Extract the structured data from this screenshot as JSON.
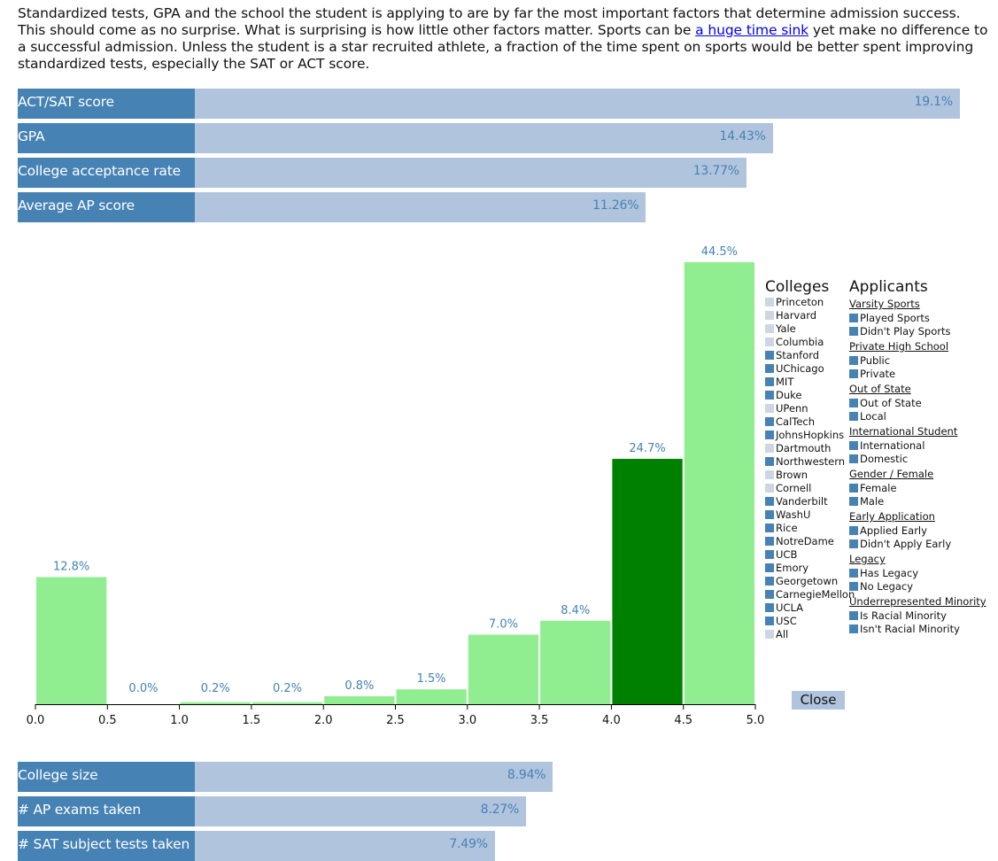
{
  "intro": {
    "text_before": "Standardized tests, GPA and the school the student is applying to are by far the most important factors that determine admission success. This should come as no surprise. What is surprising is how little other factors matter. Sports can be ",
    "link_text": "a huge time sink",
    "text_after": " yet make no difference to a successful admission. Unless the student is a star recruited athlete, a fraction of the time spent on sports would be better spent improving standardized tests, especially the SAT or ACT score."
  },
  "factors_top": [
    {
      "label": "ACT/SAT score",
      "value": "19.1%",
      "pct": 19.1
    },
    {
      "label": "GPA",
      "value": "14.43%",
      "pct": 14.43
    },
    {
      "label": "College acceptance rate",
      "value": "13.77%",
      "pct": 13.77
    },
    {
      "label": "Average AP score",
      "value": "11.26%",
      "pct": 11.26
    }
  ],
  "factors_bottom": [
    {
      "label": "College size",
      "value": "8.94%",
      "pct": 8.94
    },
    {
      "label": "# AP exams taken",
      "value": "8.27%",
      "pct": 8.27
    },
    {
      "label": "# SAT subject tests taken",
      "value": "7.49%",
      "pct": 7.49
    }
  ],
  "chart_data": {
    "type": "bar",
    "title": "",
    "xlabel": "",
    "ylabel": "",
    "bins": [
      "0.0-0.5",
      "0.5-1.0",
      "1.0-1.5",
      "1.5-2.0",
      "2.0-2.5",
      "2.5-3.0",
      "3.0-3.5",
      "3.5-4.0",
      "4.0-4.5",
      "4.5-5.0"
    ],
    "values": [
      12.8,
      0.0,
      0.2,
      0.2,
      0.8,
      1.5,
      7.0,
      8.4,
      24.7,
      44.5
    ],
    "labels": [
      "12.8%",
      "0.0%",
      "0.2%",
      "0.2%",
      "0.8%",
      "1.5%",
      "7.0%",
      "8.4%",
      "24.7%",
      "44.5%"
    ],
    "highlight_index": 8,
    "ticks": [
      "0.0",
      "0.5",
      "1.0",
      "1.5",
      "2.0",
      "2.5",
      "3.0",
      "3.5",
      "4.0",
      "4.5",
      "5.0"
    ],
    "xlim": [
      0,
      5
    ],
    "ylim": [
      0,
      44.5
    ],
    "colors": {
      "bar": "#90ee90",
      "highlight": "#008000",
      "label": "#4682b4"
    }
  },
  "legend": {
    "colleges_title": "Colleges",
    "colleges": [
      {
        "name": "Princeton",
        "active": false
      },
      {
        "name": "Harvard",
        "active": false
      },
      {
        "name": "Yale",
        "active": false
      },
      {
        "name": "Columbia",
        "active": false
      },
      {
        "name": "Stanford",
        "active": true
      },
      {
        "name": "UChicago",
        "active": true
      },
      {
        "name": "MIT",
        "active": true
      },
      {
        "name": "Duke",
        "active": true
      },
      {
        "name": "UPenn",
        "active": false
      },
      {
        "name": "CalTech",
        "active": true
      },
      {
        "name": "JohnsHopkins",
        "active": true
      },
      {
        "name": "Dartmouth",
        "active": false
      },
      {
        "name": "Northwestern",
        "active": true
      },
      {
        "name": "Brown",
        "active": false
      },
      {
        "name": "Cornell",
        "active": false
      },
      {
        "name": "Vanderbilt",
        "active": true
      },
      {
        "name": "WashU",
        "active": true
      },
      {
        "name": "Rice",
        "active": true
      },
      {
        "name": "NotreDame",
        "active": true
      },
      {
        "name": "UCB",
        "active": true
      },
      {
        "name": "Emory",
        "active": true
      },
      {
        "name": "Georgetown",
        "active": true
      },
      {
        "name": "CarnegieMellon",
        "active": true
      },
      {
        "name": "UCLA",
        "active": true
      },
      {
        "name": "USC",
        "active": true
      },
      {
        "name": "All",
        "active": false
      }
    ],
    "applicants_title": "Applicants",
    "applicant_groups": [
      {
        "title": "Varsity Sports",
        "items": [
          "Played Sports",
          "Didn't Play Sports"
        ]
      },
      {
        "title": "Private High School",
        "items": [
          "Public",
          "Private"
        ]
      },
      {
        "title": "Out of State",
        "items": [
          "Out of State",
          "Local"
        ]
      },
      {
        "title": "International Student",
        "items": [
          "International",
          "Domestic"
        ]
      },
      {
        "title": "Gender / Female",
        "items": [
          "Female",
          "Male"
        ]
      },
      {
        "title": "Early Application",
        "items": [
          "Applied Early",
          "Didn't Apply Early"
        ]
      },
      {
        "title": "Legacy",
        "items": [
          "Has Legacy",
          "No Legacy"
        ]
      },
      {
        "title": "Underrepresented Minority",
        "items": [
          "Is Racial Minority",
          "Isn't Racial Minority"
        ]
      }
    ],
    "colors": {
      "active": "#4682b4",
      "inactive": "#cdd6e2"
    }
  },
  "close_label": "Close",
  "colors": {
    "label_bg": "#4682b4",
    "bar": "#b0c4de",
    "value": "#4682b4"
  }
}
